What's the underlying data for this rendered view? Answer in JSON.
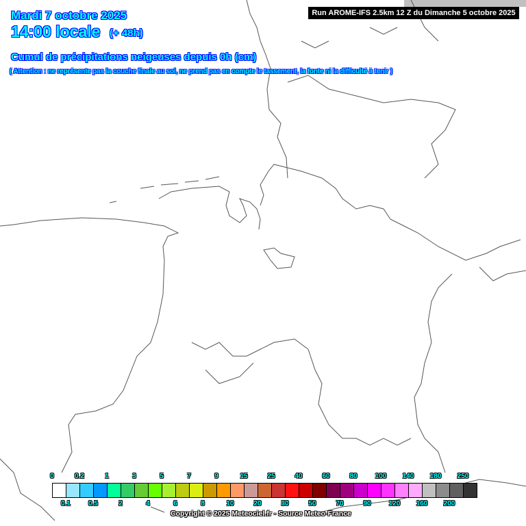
{
  "header": {
    "date": "Mardi 7 octobre 2025",
    "time": "14:00 locale",
    "lead": "(+ 48h)",
    "subtitle": "Cumul de précipitations neigeuses depuis 0h (cm)",
    "note": "( Attention : ne représente pas la couche finale au sol, ne prend pas en compte le tassement, la fonte ni la difficulté à tenir )",
    "run": "Run AROME-IFS 2.5km 12 Z du Dimanche 5 octobre 2025"
  },
  "legend": {
    "colors": [
      "#ffffff",
      "#99e6ff",
      "#33ccff",
      "#0099ff",
      "#00ff99",
      "#33cc66",
      "#66cc33",
      "#66ff00",
      "#a6f030",
      "#bccc10",
      "#dcee10",
      "#cc9900",
      "#ff9900",
      "#ff9966",
      "#cc9999",
      "#cc6633",
      "#cc3333",
      "#ff1111",
      "#cc0000",
      "#800000",
      "#7f0050",
      "#a0007f",
      "#cc00cc",
      "#ff00ff",
      "#ff33ff",
      "#ff80ff",
      "#ffaaff",
      "#c0c0c0",
      "#8c8c8c",
      "#606060",
      "#333333"
    ],
    "top_labels": [
      "0",
      "0.2",
      "1",
      "3",
      "5",
      "7",
      "9",
      "15",
      "25",
      "40",
      "60",
      "80",
      "100",
      "140",
      "180",
      "250"
    ],
    "bottom_labels": [
      "0.1",
      "0.5",
      "2",
      "4",
      "6",
      "8",
      "10",
      "20",
      "30",
      "50",
      "70",
      "90",
      "120",
      "160",
      "200"
    ],
    "unit": "cm"
  },
  "footer": {
    "copyright": "Copyright © 2025 Meteociel.fr - Source Meteo-France"
  },
  "map": {
    "snow_accumulation_visible": false,
    "outline_color": "#555555"
  }
}
